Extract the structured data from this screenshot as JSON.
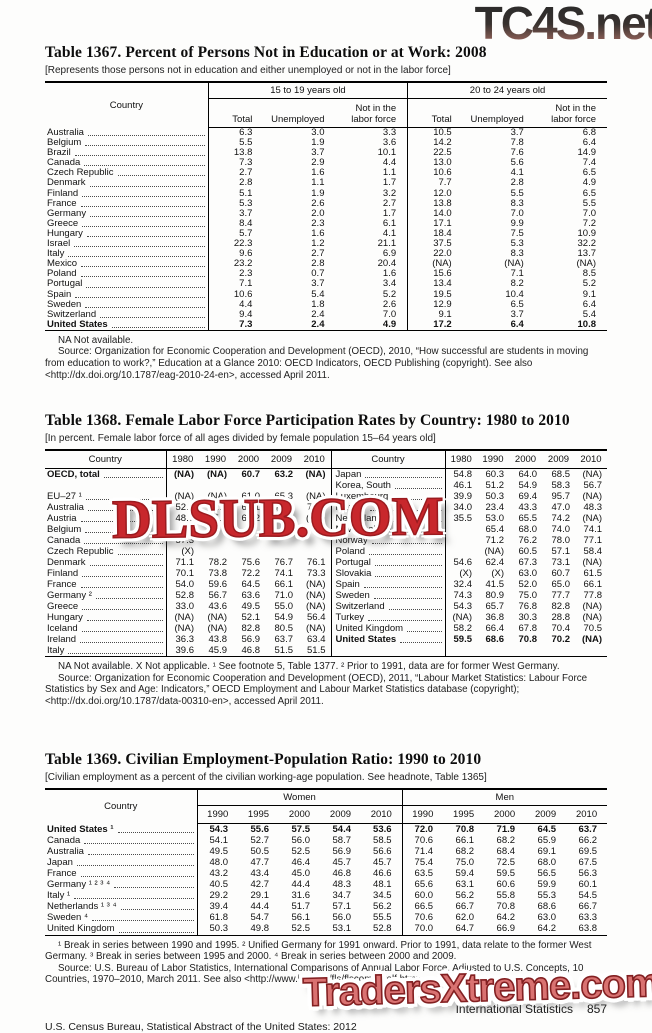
{
  "watermarks": {
    "top": "TC4S.net",
    "middle": "DLSUB.COM",
    "bottom": "TradersXtreme.com"
  },
  "t1367": {
    "label": "Table 1367.",
    "title": "Percent of Persons Not in Education or at Work: 2008",
    "note": "[Represents those persons not in education and either unemployed or not in the labor force]",
    "country_header": "Country",
    "group1": "15 to 19 years old",
    "group2": "20 to 24 years old",
    "sub": [
      "Total",
      "Unemployed",
      "Not in the labor force"
    ],
    "rows": [
      [
        {
          "c": "Australia",
          "v": [
            "6.3",
            "3.0",
            "3.3",
            "10.5",
            "3.7",
            "6.8"
          ]
        }
      ],
      [
        {
          "c": "Belgium",
          "v": [
            "5.5",
            "1.9",
            "3.6",
            "14.2",
            "7.8",
            "6.4"
          ]
        }
      ],
      [
        {
          "c": "Brazil",
          "v": [
            "13.8",
            "3.7",
            "10.1",
            "22.5",
            "7.6",
            "14.9"
          ]
        }
      ],
      [
        {
          "c": "Canada",
          "v": [
            "7.3",
            "2.9",
            "4.4",
            "13.0",
            "5.6",
            "7.4"
          ]
        }
      ],
      [
        {
          "c": "Czech Republic",
          "v": [
            "2.7",
            "1.6",
            "1.1",
            "10.6",
            "4.1",
            "6.5"
          ]
        }
      ],
      [
        {
          "c": "Denmark",
          "v": [
            "2.8",
            "1.1",
            "1.7",
            "7.7",
            "2.8",
            "4.9"
          ]
        }
      ],
      [
        {
          "c": "Finland",
          "v": [
            "5.1",
            "1.9",
            "3.2",
            "12.0",
            "5.5",
            "6.5"
          ]
        }
      ],
      [
        {
          "c": "France",
          "v": [
            "5.3",
            "2.6",
            "2.7",
            "13.8",
            "8.3",
            "5.5"
          ]
        }
      ],
      [
        {
          "c": "Germany",
          "v": [
            "3.7",
            "2.0",
            "1.7",
            "14.0",
            "7.0",
            "7.0"
          ]
        }
      ],
      [
        {
          "c": "Greece",
          "v": [
            "8.4",
            "2.3",
            "6.1",
            "17.1",
            "9.9",
            "7.2"
          ]
        }
      ],
      [
        {
          "c": "Hungary",
          "v": [
            "5.7",
            "1.6",
            "4.1",
            "18.4",
            "7.5",
            "10.9"
          ]
        }
      ],
      [
        {
          "c": "Israel",
          "v": [
            "22.3",
            "1.2",
            "21.1",
            "37.5",
            "5.3",
            "32.2"
          ]
        }
      ],
      [
        {
          "c": "Italy",
          "v": [
            "9.6",
            "2.7",
            "6.9",
            "22.0",
            "8.3",
            "13.7"
          ]
        }
      ],
      [
        {
          "c": "Mexico",
          "v": [
            "23.2",
            "2.8",
            "20.4",
            "(NA)",
            "(NA)",
            "(NA)"
          ]
        }
      ],
      [
        {
          "c": "Poland",
          "v": [
            "2.3",
            "0.7",
            "1.6",
            "15.6",
            "7.1",
            "8.5"
          ]
        }
      ],
      [
        {
          "c": "Portugal",
          "v": [
            "7.1",
            "3.7",
            "3.4",
            "13.4",
            "8.2",
            "5.2"
          ]
        }
      ],
      [
        {
          "c": "Spain",
          "v": [
            "10.6",
            "5.4",
            "5.2",
            "19.5",
            "10.4",
            "9.1"
          ]
        }
      ],
      [
        {
          "c": "Sweden",
          "v": [
            "4.4",
            "1.8",
            "2.6",
            "12.9",
            "6.5",
            "6.4"
          ]
        }
      ],
      [
        {
          "c": "Switzerland",
          "v": [
            "9.4",
            "2.4",
            "7.0",
            "9.1",
            "3.7",
            "5.4"
          ]
        }
      ],
      [
        {
          "c": "United States",
          "b": true,
          "v": [
            "7.3",
            "2.4",
            "4.9",
            "17.2",
            "6.4",
            "10.8"
          ]
        }
      ]
    ],
    "footnotes": [
      "NA Not available.",
      "Source: Organization for Economic Cooperation and Development (OECD), 2010, “How successful are students in moving from education to work?,” Education at a Glance 2010: OECD Indicators, OECD Publishing (copyright). See also <http://dx.doi.org/10.1787/eag-2010-24-en>, accessed April 2011."
    ]
  },
  "t1368": {
    "label": "Table 1368.",
    "title": "Female Labor Force Participation Rates by Country: 1980 to 2010",
    "note": "[In percent. Female labor force of all ages divided by female population 15–64 years old]",
    "country_header": "Country",
    "years": [
      "1980",
      "1990",
      "2000",
      "2009",
      "2010"
    ],
    "rows": [
      [
        {
          "c": "OECD, total",
          "b": true,
          "v": [
            "(NA)",
            "(NA)",
            "60.7",
            "63.2",
            "(NA)"
          ]
        },
        {
          "c": "Japan",
          "v": [
            "54.8",
            "60.3",
            "64.0",
            "68.5",
            "(NA)"
          ]
        }
      ],
      [
        {
          "c": "",
          "v": [
            "",
            "",
            "",
            "",
            ""
          ]
        },
        {
          "c": "Korea, South",
          "v": [
            "46.1",
            "51.2",
            "54.9",
            "58.3",
            "56.7"
          ]
        }
      ],
      [
        {
          "c": "EU–27 ¹",
          "v": [
            "(NA)",
            "(NA)",
            "61.0",
            "65.3",
            "(NA)"
          ]
        },
        {
          "c": "Luxembourg",
          "v": [
            "39.9",
            "50.3",
            "69.4",
            "95.7",
            "(NA)"
          ]
        }
      ],
      [
        {
          "c": "Australia",
          "v": [
            "52.5",
            "62.2",
            "66.1",
            "71.4",
            "71.6"
          ]
        },
        {
          "c": "Mexico",
          "v": [
            "34.0",
            "23.4",
            "43.3",
            "47.0",
            "48.3"
          ]
        }
      ],
      [
        {
          "c": "Austria",
          "v": [
            "48.7",
            "55.4",
            "62.2",
            "70.3",
            "(NA)"
          ]
        },
        {
          "c": "Netherlands",
          "v": [
            "35.5",
            "53.0",
            "65.5",
            "74.2",
            "(NA)"
          ]
        }
      ],
      [
        {
          "c": "Belgium",
          "v": [
            "46.",
            "",
            "",
            "",
            ""
          ]
        },
        {
          "c": "New Zealand",
          "v": [
            "",
            "65.4",
            "68.0",
            "74.0",
            "74.1"
          ]
        }
      ],
      [
        {
          "c": "Canada",
          "v": [
            "57.3",
            "",
            "",
            "",
            ""
          ]
        },
        {
          "c": "Norway",
          "v": [
            "",
            "71.2",
            "76.2",
            "78.0",
            "77.1"
          ]
        }
      ],
      [
        {
          "c": "Czech Republic",
          "v": [
            "(X)",
            "",
            "",
            "",
            ""
          ]
        },
        {
          "c": "Poland",
          "v": [
            "",
            "(NA)",
            "60.5",
            "57.1",
            "58.4"
          ]
        }
      ],
      [
        {
          "c": "Denmark",
          "v": [
            "71.1",
            "78.2",
            "75.6",
            "76.7",
            "76.1"
          ]
        },
        {
          "c": "Portugal",
          "v": [
            "54.6",
            "62.4",
            "67.3",
            "73.1",
            "(NA)"
          ]
        }
      ],
      [
        {
          "c": "Finland",
          "v": [
            "70.1",
            "73.8",
            "72.2",
            "74.1",
            "73.3"
          ]
        },
        {
          "c": "Slovakia",
          "v": [
            "(X)",
            "(X)",
            "63.0",
            "60.7",
            "61.5"
          ]
        }
      ],
      [
        {
          "c": "France",
          "v": [
            "54.0",
            "59.6",
            "64.5",
            "66.1",
            "(NA)"
          ]
        },
        {
          "c": "Spain",
          "v": [
            "32.4",
            "41.5",
            "52.0",
            "65.0",
            "66.1"
          ]
        }
      ],
      [
        {
          "c": "Germany ²",
          "v": [
            "52.8",
            "56.7",
            "63.6",
            "71.0",
            "(NA)"
          ]
        },
        {
          "c": "Sweden",
          "v": [
            "74.3",
            "80.9",
            "75.0",
            "77.7",
            "77.8"
          ]
        }
      ],
      [
        {
          "c": "Greece",
          "v": [
            "33.0",
            "43.6",
            "49.5",
            "55.0",
            "(NA)"
          ]
        },
        {
          "c": "Switzerland",
          "v": [
            "54.3",
            "65.7",
            "76.8",
            "82.8",
            "(NA)"
          ]
        }
      ],
      [
        {
          "c": "Hungary",
          "v": [
            "(NA)",
            "(NA)",
            "52.1",
            "54.9",
            "56.4"
          ]
        },
        {
          "c": "Turkey",
          "v": [
            "(NA)",
            "36.8",
            "30.3",
            "28.8",
            "(NA)"
          ]
        }
      ],
      [
        {
          "c": "Iceland",
          "v": [
            "(NA)",
            "(NA)",
            "82.8",
            "80.5",
            "(NA)"
          ]
        },
        {
          "c": "United Kingdom",
          "v": [
            "58.2",
            "66.4",
            "67.8",
            "70.4",
            "70.5"
          ]
        }
      ],
      [
        {
          "c": "Ireland",
          "v": [
            "36.3",
            "43.8",
            "56.9",
            "63.7",
            "63.4"
          ]
        },
        {
          "c": "United States",
          "b": true,
          "v": [
            "59.5",
            "68.6",
            "70.8",
            "70.2",
            "(NA)"
          ]
        }
      ],
      [
        {
          "c": "Italy",
          "v": [
            "39.6",
            "45.9",
            "46.8",
            "51.5",
            "51.5"
          ]
        },
        {
          "c": "",
          "v": [
            "",
            "",
            "",
            "",
            ""
          ]
        }
      ]
    ],
    "footnotes": [
      "NA Not available. X Not applicable. ¹ See footnote 5, Table 1377. ² Prior to 1991, data are for former West Germany.",
      "Source: Organization for Economic Cooperation and Development (OECD), 2011, “Labour Market Statistics: Labour Force Statistics by Sex and Age: Indicators,” OECD Employment and Labour Market Statistics database (copyright); <http://dx.doi.org/10.1787/data-00310-en>, accessed April 2011."
    ]
  },
  "t1369": {
    "label": "Table 1369.",
    "title": "Civilian Employment-Population Ratio: 1990 to 2010",
    "note": "[Civilian employment as a percent of the civilian working-age population. See headnote, Table 1365]",
    "country_header": "Country",
    "group1": "Women",
    "group2": "Men",
    "years": [
      "1990",
      "1995",
      "2000",
      "2009",
      "2010"
    ],
    "rows": [
      [
        {
          "c": "United States ¹",
          "b": true,
          "v": [
            "54.3",
            "55.6",
            "57.5",
            "54.4",
            "53.6",
            "72.0",
            "70.8",
            "71.9",
            "64.5",
            "63.7"
          ]
        }
      ],
      [
        {
          "c": "Canada",
          "v": [
            "54.1",
            "52.7",
            "56.0",
            "58.7",
            "58.5",
            "70.6",
            "66.1",
            "68.2",
            "65.9",
            "66.2"
          ]
        }
      ],
      [
        {
          "c": "Australia",
          "v": [
            "49.5",
            "50.5",
            "52.5",
            "56.9",
            "56.6",
            "71.4",
            "68.2",
            "68.4",
            "69.1",
            "69.5"
          ]
        }
      ],
      [
        {
          "c": "Japan",
          "v": [
            "48.0",
            "47.7",
            "46.4",
            "45.7",
            "45.7",
            "75.4",
            "75.0",
            "72.5",
            "68.0",
            "67.5"
          ]
        }
      ],
      [
        {
          "c": "France",
          "v": [
            "43.2",
            "43.4",
            "45.0",
            "46.8",
            "46.6",
            "63.5",
            "59.4",
            "59.5",
            "56.5",
            "56.3"
          ]
        }
      ],
      [
        {
          "c": "Germany ¹ ² ³ ⁴",
          "v": [
            "40.5",
            "42.7",
            "44.4",
            "48.3",
            "48.1",
            "65.6",
            "63.1",
            "60.6",
            "59.9",
            "60.1"
          ]
        }
      ],
      [
        {
          "c": "Italy ¹",
          "v": [
            "29.2",
            "29.1",
            "31.6",
            "34.7",
            "34.5",
            "60.0",
            "56.2",
            "55.8",
            "55.3",
            "54.5"
          ]
        }
      ],
      [
        {
          "c": "Netherlands ¹ ³ ⁴",
          "v": [
            "39.4",
            "44.4",
            "51.7",
            "57.1",
            "56.2",
            "66.5",
            "66.7",
            "70.8",
            "68.6",
            "66.7"
          ]
        }
      ],
      [
        {
          "c": "Sweden ⁴",
          "v": [
            "61.8",
            "54.7",
            "56.1",
            "56.0",
            "55.5",
            "70.6",
            "62.0",
            "64.2",
            "63.0",
            "63.3"
          ]
        }
      ],
      [
        {
          "c": "United Kingdom",
          "v": [
            "50.3",
            "49.8",
            "52.5",
            "53.1",
            "52.8",
            "70.0",
            "64.7",
            "66.9",
            "64.2",
            "63.8"
          ]
        }
      ]
    ],
    "footnotes": [
      "¹ Break in series between 1990 and 1995. ² Unified Germany for 1991 onward. Prior to 1991, data relate to the former West Germany. ³ Break in series between 1995 and 2000. ⁴ Break in series between 2000 and 2009.",
      "Source: U.S. Bureau of Labor Statistics, International Comparisons of Annual Labor Force, Adjusted to U.S. Concepts, 10 Countries, 1970–2010, March 2011. See also <http://www.bls.gov/fls/flscomparelf.htm>."
    ]
  },
  "footer": {
    "section_label": "International Statistics",
    "page_number": "857",
    "bureau_line": "U.S. Census Bureau, Statistical Abstract of the United States: 2012"
  }
}
